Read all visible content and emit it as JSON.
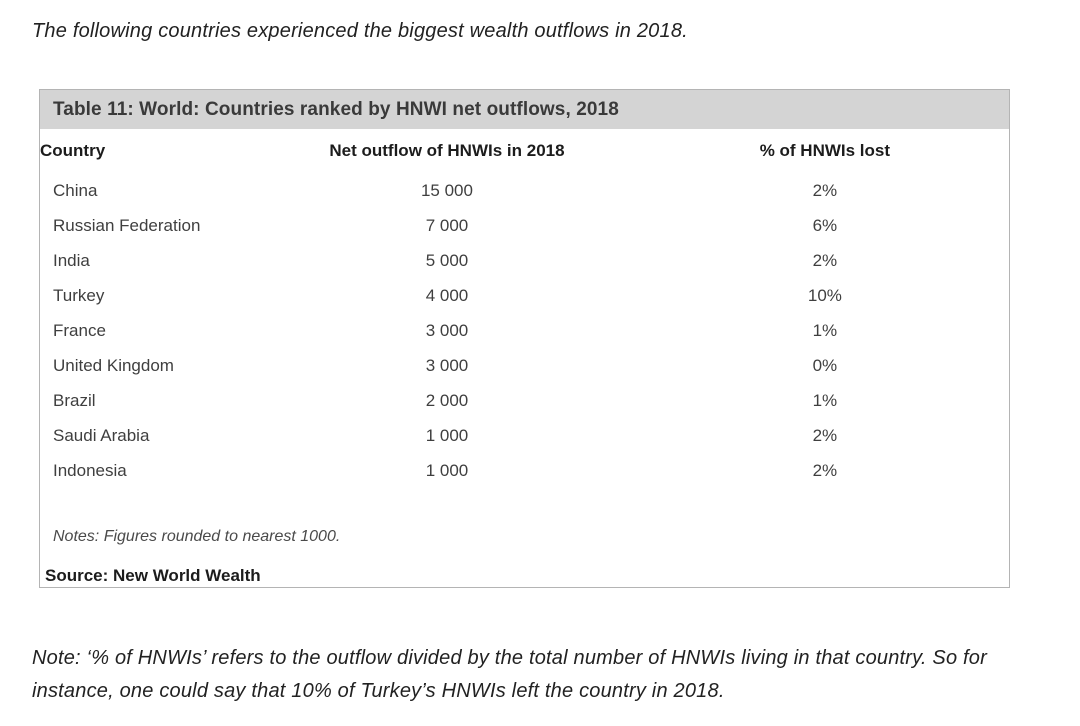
{
  "page": {
    "intro_text": "The following countries experienced the biggest wealth outflows in 2018.",
    "footnote_lines": [
      "Note: ‘% of HNWIs’ refers to the outflow divided by the total number of HNWIs living in that country. So for",
      "instance, one could say that 10% of Turkey’s HNWIs left the country in 2018."
    ]
  },
  "table": {
    "title": "Table 11: World: Countries ranked by HNWI net outflows, 2018",
    "columns": [
      "Country",
      "Net outflow of HNWIs in 2018",
      "% of HNWIs lost"
    ],
    "rows": [
      {
        "country": "China",
        "outflow": "15 000",
        "pct_lost": "2%"
      },
      {
        "country": "Russian Federation",
        "outflow": "7 000",
        "pct_lost": "6%"
      },
      {
        "country": "India",
        "outflow": "5 000",
        "pct_lost": "2%"
      },
      {
        "country": "Turkey",
        "outflow": "4 000",
        "pct_lost": "10%"
      },
      {
        "country": "France",
        "outflow": "3 000",
        "pct_lost": "1%"
      },
      {
        "country": "United Kingdom",
        "outflow": "3 000",
        "pct_lost": "0%"
      },
      {
        "country": "Brazil",
        "outflow": "2 000",
        "pct_lost": "1%"
      },
      {
        "country": "Saudi Arabia",
        "outflow": "1 000",
        "pct_lost": "2%"
      },
      {
        "country": "Indonesia",
        "outflow": "1 000",
        "pct_lost": "2%"
      }
    ],
    "notes": "Notes: Figures rounded to nearest 1000.",
    "source": "Source: New World Wealth"
  },
  "colors": {
    "title_bar_bg": "#d4d4d4",
    "table_border": "#b4b4b4"
  }
}
